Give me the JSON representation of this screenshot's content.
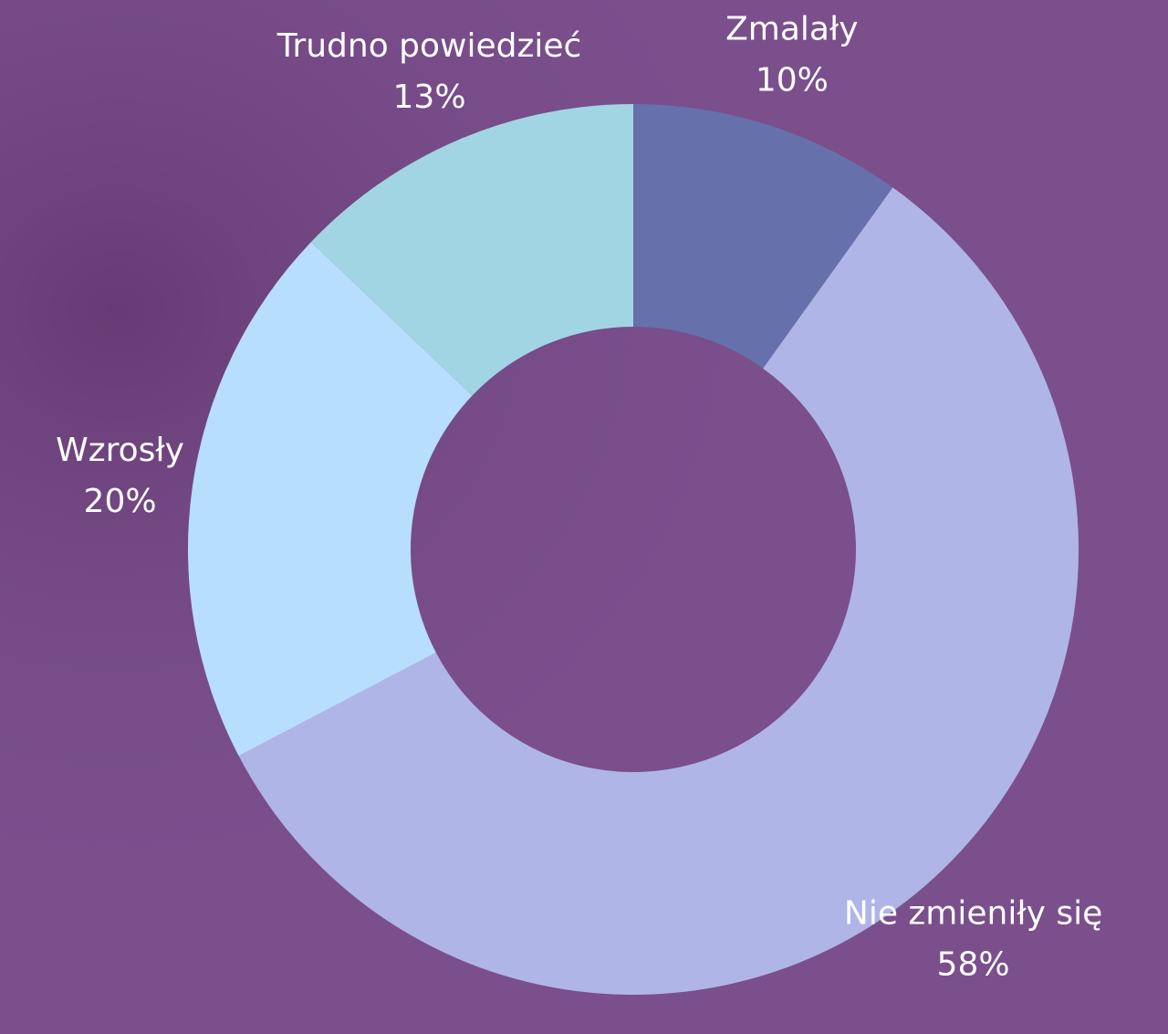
{
  "chart_data": {
    "type": "donut",
    "categories": [
      "Zmalały",
      "Nie zmieniły się",
      "Wzrosły",
      "Trudno powiedzieć"
    ],
    "values": [
      10,
      58,
      20,
      13
    ],
    "value_labels": [
      "10%",
      "58%",
      "20%",
      "13%"
    ],
    "colors": [
      "#6670aa",
      "#b0b5e8",
      "#b8defd",
      "#a2d5e3"
    ]
  }
}
